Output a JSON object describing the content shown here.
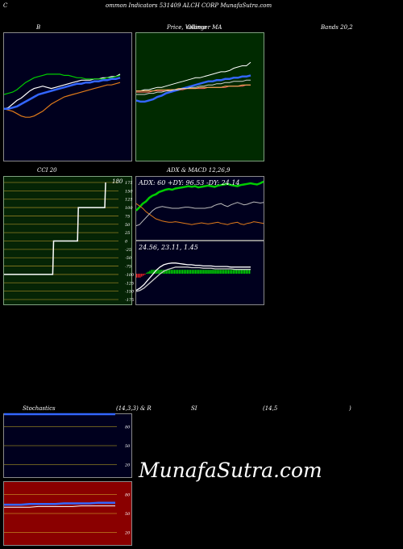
{
  "header": {
    "text": "C",
    "title": "ommon  Indicators 531409 ALCH CORP MunafaSutra.com"
  },
  "labels": {
    "bb": "B",
    "price": "Price,  Volume",
    "price_overlay": "Ollinger  MA",
    "bands": "Bands 20,2",
    "cci": "CCI 20",
    "adx_macd": "ADX  & MACD 12,26,9",
    "stoch": "Stochastics",
    "stoch_params": "(14,3,3) & R",
    "si": "SI",
    "rsi_params": "(14,5",
    "rsi_close": ")"
  },
  "watermark": "MunafaSutra.com",
  "colors": {
    "bb_bg": "#00001e",
    "price_bg": "#002a00",
    "cci_bg": "#052405",
    "adx_bg": "#00001e",
    "rsi_bg": "#8a0000"
  },
  "chart_data": [
    {
      "id": "bollinger",
      "type": "line",
      "x": [
        0,
        1,
        2,
        3,
        4,
        5,
        6,
        7,
        8,
        9,
        10,
        11,
        12,
        13,
        14,
        15,
        16,
        17,
        18,
        19,
        20,
        21,
        22,
        23,
        24,
        25,
        26,
        27
      ],
      "ylim": [
        0,
        100
      ],
      "series": [
        {
          "color": "#ffffff",
          "values": [
            40,
            41,
            44,
            47,
            49,
            52,
            55,
            57,
            58,
            59,
            58,
            57,
            58,
            59,
            60,
            61,
            62,
            63,
            64,
            64,
            64,
            65,
            65,
            66,
            66,
            67,
            67,
            69
          ]
        },
        {
          "color": "#00cc00",
          "values": [
            52,
            53,
            54,
            56,
            59,
            62,
            64,
            66,
            67,
            68,
            69,
            69,
            69,
            69,
            68,
            68,
            67,
            66,
            66,
            65,
            65,
            65,
            65,
            65,
            66,
            66,
            67,
            68
          ]
        },
        {
          "color": "#e07a1a",
          "values": [
            40,
            39,
            38,
            36,
            34,
            33,
            33,
            34,
            36,
            38,
            41,
            44,
            46,
            48,
            50,
            51,
            52,
            53,
            54,
            55,
            56,
            57,
            58,
            59,
            60,
            60,
            61,
            62
          ]
        },
        {
          "color": "#3366ff",
          "values": [
            40,
            40,
            41,
            42,
            44,
            46,
            48,
            50,
            52,
            53,
            54,
            55,
            56,
            57,
            58,
            59,
            60,
            61,
            61,
            62,
            62,
            63,
            63,
            64,
            64,
            65,
            65,
            66
          ]
        }
      ]
    },
    {
      "id": "price",
      "type": "line",
      "x": [
        0,
        1,
        2,
        3,
        4,
        5,
        6,
        7,
        8,
        9,
        10,
        11,
        12,
        13,
        14,
        15,
        16,
        17,
        18,
        19,
        20,
        21,
        22,
        23,
        24,
        25,
        26,
        27
      ],
      "ylim": [
        0,
        100
      ],
      "series": [
        {
          "color": "#ffffff",
          "values": [
            55,
            55,
            56,
            56,
            57,
            58,
            58,
            59,
            60,
            61,
            62,
            63,
            64,
            65,
            66,
            66,
            67,
            68,
            69,
            70,
            71,
            71,
            72,
            74,
            75,
            76,
            76,
            79
          ]
        },
        {
          "color": "#3366ff",
          "values": [
            47,
            46,
            46,
            47,
            48,
            50,
            51,
            53,
            54,
            55,
            56,
            57,
            58,
            59,
            60,
            61,
            62,
            63,
            63,
            64,
            64,
            65,
            65,
            66,
            66,
            67,
            67,
            68
          ]
        },
        {
          "color": "#ff6060",
          "values": [
            54,
            54,
            54,
            54,
            55,
            55,
            55,
            55,
            56,
            56,
            56,
            56,
            57,
            57,
            57,
            57,
            57,
            58,
            58,
            58,
            58,
            58,
            59,
            59,
            59,
            59,
            60,
            60
          ]
        },
        {
          "color": "#ffb060",
          "values": [
            55,
            55,
            55,
            55,
            55,
            56,
            56,
            56,
            56,
            56,
            57,
            57,
            57,
            57,
            57,
            58,
            58,
            58,
            58,
            58,
            58,
            59,
            59,
            59,
            59,
            60,
            60,
            60
          ]
        },
        {
          "color": "#d0d0d0",
          "values": [
            52,
            52,
            52,
            53,
            53,
            54,
            54,
            55,
            55,
            56,
            56,
            57,
            57,
            58,
            58,
            59,
            59,
            60,
            60,
            61,
            61,
            62,
            62,
            63,
            63,
            63,
            64,
            64
          ]
        }
      ]
    },
    {
      "id": "cci",
      "type": "line",
      "ylim": [
        -175,
        175
      ],
      "ticks": [
        "175",
        "150",
        "125",
        "100",
        "75",
        "50",
        "25",
        "0",
        "-25",
        "-50",
        "-75",
        "-100",
        "-125",
        "-150",
        "-175"
      ],
      "value_label": "180",
      "series": [
        {
          "color": "#ffffff",
          "values": [
            -100,
            -100,
            -100,
            -100,
            -100,
            -100,
            -100,
            -100,
            -100,
            -100,
            -100,
            -100,
            -100,
            -100,
            -100,
            -100,
            -100,
            -100,
            -100,
            -100,
            -100,
            -100,
            -100,
            -100,
            -100,
            -100,
            -100,
            -100,
            -100,
            -100,
            -100,
            -100,
            -100,
            -100,
            -100,
            -100,
            -100,
            -100,
            -100,
            -100,
            -100,
            -100,
            -100,
            -100,
            -100,
            -100,
            -100,
            -100,
            -100,
            -100,
            -100,
            -100,
            -100,
            -100,
            -100,
            -100,
            -100,
            -100,
            -100,
            -100,
            0,
            0,
            0,
            0,
            0,
            0,
            0,
            0,
            0,
            0,
            0,
            0,
            0,
            0,
            0,
            0,
            0,
            0,
            0,
            0,
            0,
            0,
            0,
            0,
            0,
            0,
            0,
            0,
            0,
            0,
            100,
            100,
            100,
            100,
            100,
            100,
            100,
            100,
            100,
            100,
            100,
            100,
            100,
            100,
            100,
            100,
            100,
            100,
            100,
            100,
            100,
            100,
            100,
            100,
            100,
            100,
            100,
            100,
            100,
            100,
            100,
            100,
            100,
            180
          ]
        }
      ]
    },
    {
      "id": "adx",
      "type": "line",
      "overlay": "ADX: 60  +DY: 96.53  -DY: 24.14",
      "ylim": [
        0,
        100
      ],
      "series": [
        {
          "name": "+DY",
          "color": "#00cc00",
          "values": [
            46,
            52,
            58,
            62,
            68,
            72,
            74,
            78,
            80,
            82,
            83,
            82,
            84,
            85,
            86,
            87,
            88,
            87,
            88,
            86,
            87,
            88,
            89,
            88,
            87,
            89,
            90,
            91,
            92,
            90,
            89,
            88,
            90,
            91,
            92,
            93,
            92,
            91,
            93,
            96
          ]
        },
        {
          "name": "-DY",
          "color": "#e07a1a",
          "values": [
            58,
            54,
            50,
            44,
            40,
            36,
            32,
            30,
            28,
            27,
            26,
            26,
            27,
            26,
            25,
            24,
            23,
            22,
            23,
            24,
            25,
            24,
            23,
            24,
            25,
            26,
            24,
            23,
            22,
            24,
            25,
            26,
            23,
            22,
            24,
            25,
            27,
            26,
            25,
            24
          ]
        },
        {
          "name": "ADX",
          "color": "#bbbbbb",
          "values": [
            20,
            22,
            28,
            34,
            40,
            46,
            50,
            52,
            53,
            52,
            51,
            50,
            50,
            50,
            51,
            52,
            52,
            51,
            50,
            50,
            50,
            50,
            51,
            52,
            55,
            57,
            58,
            55,
            53,
            56,
            58,
            60,
            58,
            56,
            57,
            59,
            61,
            60,
            59,
            60
          ]
        }
      ]
    },
    {
      "id": "macd",
      "type": "line",
      "overlay": "24.56,  23.11,  1.45",
      "ylim": [
        0,
        100
      ],
      "series": [
        {
          "name": "MACD",
          "color": "#ffffff",
          "values": [
            20,
            24,
            30,
            38,
            46,
            54,
            60,
            64,
            66,
            67,
            67,
            66,
            65,
            64,
            64,
            63,
            63,
            62,
            62,
            62,
            61,
            61,
            61,
            61,
            60,
            60,
            60,
            60,
            60,
            60
          ]
        },
        {
          "name": "signal",
          "color": "#cccccc",
          "values": [
            18,
            20,
            24,
            30,
            36,
            42,
            48,
            53,
            56,
            58,
            60,
            60,
            60,
            60,
            59,
            59,
            59,
            58,
            58,
            58,
            57,
            57,
            57,
            57,
            57,
            56,
            56,
            56,
            56,
            56
          ]
        }
      ],
      "histogram": [
        -8,
        -8,
        -8,
        -6,
        -4,
        -2,
        2,
        4,
        6,
        8,
        8,
        8,
        8,
        8,
        8,
        8,
        8,
        8,
        8,
        8,
        8,
        8,
        8,
        8,
        8,
        8,
        8,
        8,
        8,
        8,
        8,
        8,
        8,
        8,
        8,
        8,
        8,
        8,
        8,
        8,
        8,
        8,
        8,
        8,
        8,
        8,
        8,
        8,
        8,
        8,
        8,
        8,
        8,
        8,
        8,
        8,
        8,
        8,
        8,
        8,
        8,
        8,
        8,
        8,
        8,
        8,
        8,
        8,
        8,
        8
      ]
    },
    {
      "id": "stochastics",
      "type": "line",
      "ticks": [
        "80",
        "50",
        "20"
      ],
      "ylim": [
        0,
        100
      ],
      "series": [
        {
          "color": "#3366ff",
          "values": [
            100,
            100,
            100,
            100,
            100,
            100,
            100,
            100,
            100,
            100,
            100,
            100
          ]
        }
      ]
    },
    {
      "id": "rsi",
      "type": "line",
      "ticks": [
        "80",
        "50",
        "20"
      ],
      "ylim": [
        0,
        100
      ],
      "series": [
        {
          "color": "#3366ff",
          "values": [
            64,
            64,
            64,
            65,
            65,
            65,
            65,
            66,
            66,
            66,
            66,
            67,
            67,
            67
          ]
        },
        {
          "color": "#ffffff",
          "values": [
            60,
            60,
            60,
            60,
            61,
            61,
            61,
            61,
            61,
            62,
            62,
            62,
            62,
            62
          ]
        }
      ]
    }
  ]
}
